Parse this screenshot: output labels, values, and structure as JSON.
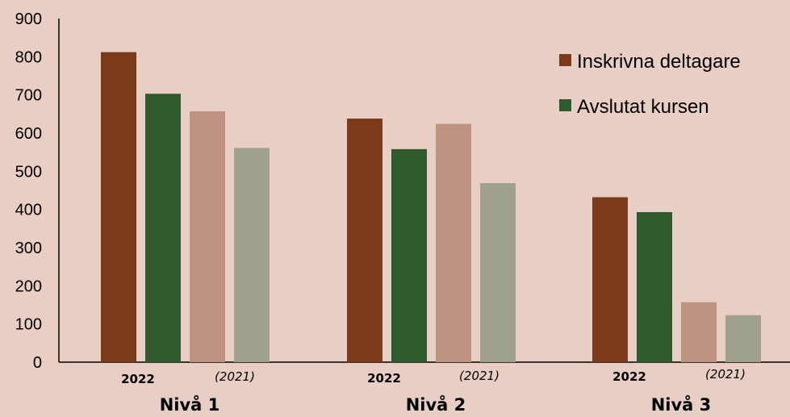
{
  "chart_data": {
    "type": "bar",
    "title": "",
    "xlabel": "",
    "ylabel": "",
    "ylim": [
      0,
      900
    ],
    "yticks": [
      "0",
      "100",
      "200",
      "300",
      "400",
      "500",
      "600",
      "700",
      "800",
      "900"
    ],
    "grid": false,
    "legend_position": "top-right",
    "categories": [
      "Nivå 1",
      "Nivå 2",
      "Nivå 3"
    ],
    "year_labels": {
      "current": "2022",
      "previous": "(2021)"
    },
    "series": [
      {
        "name": "Inskrivna deltagare",
        "year": "2022",
        "color": "#7b3a19",
        "values": [
          812,
          638,
          432
        ]
      },
      {
        "name": "Avslutat kursen",
        "year": "2022",
        "color": "#2f5a2b",
        "values": [
          703,
          558,
          393
        ]
      },
      {
        "year": "2021",
        "color": "#bf9381",
        "values": [
          657,
          624,
          157
        ]
      },
      {
        "year": "2021",
        "color": "#9fa18d",
        "values": [
          561,
          469,
          123
        ]
      }
    ],
    "legend": [
      {
        "label": "Inskrivna deltagare",
        "color": "#7b3a19"
      },
      {
        "label": "Avslutat kursen",
        "color": "#2f5a2b"
      }
    ]
  }
}
